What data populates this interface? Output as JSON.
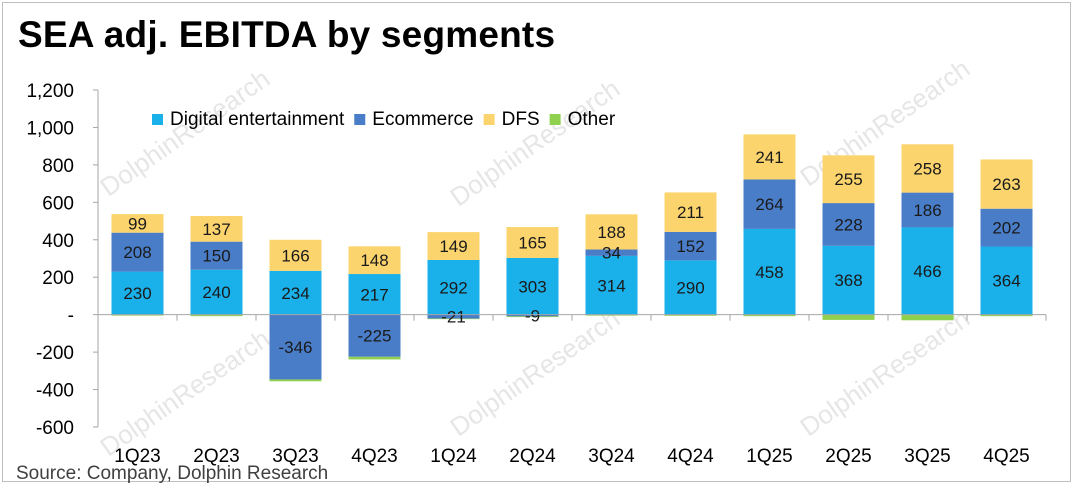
{
  "title": "SEA adj. EBITDA by segments",
  "source": "Source: Company, Dolphin Research",
  "watermark": "DolphinResearch",
  "chart_data": {
    "type": "bar",
    "stacked": true,
    "title": "SEA adj. EBITDA by segments",
    "xlabel": "",
    "ylabel": "",
    "categories": [
      "1Q23",
      "2Q23",
      "3Q23",
      "4Q23",
      "1Q24",
      "2Q24",
      "3Q24",
      "4Q24",
      "1Q25",
      "2Q25",
      "3Q25",
      "4Q25"
    ],
    "ylim": [
      -600,
      1200
    ],
    "yticks": [
      -600,
      -400,
      -200,
      0,
      200,
      400,
      600,
      800,
      1000,
      1200
    ],
    "ytick_labels": [
      "-600",
      "-400",
      "-200",
      "-",
      "200",
      "400",
      "600",
      "800",
      "1,000",
      "1,200"
    ],
    "legend_position": "top-left",
    "grid": false,
    "series": [
      {
        "name": "Digital entertainment",
        "color": "#1ab0ea",
        "values": [
          230,
          240,
          234,
          217,
          292,
          303,
          314,
          290,
          458,
          368,
          466,
          364
        ]
      },
      {
        "name": "Ecommerce",
        "color": "#4a7dc8",
        "values": [
          208,
          150,
          -346,
          -225,
          -21,
          -9,
          34,
          152,
          264,
          228,
          186,
          202
        ]
      },
      {
        "name": "DFS",
        "color": "#fbd46d",
        "values": [
          99,
          137,
          166,
          148,
          149,
          165,
          188,
          211,
          241,
          255,
          258,
          263
        ]
      },
      {
        "name": "Other",
        "color": "#8fd14f",
        "values": [
          -5,
          -8,
          -10,
          -14,
          -3,
          -4,
          -5,
          -6,
          -8,
          -28,
          -30,
          -8
        ]
      }
    ],
    "labeled_series": [
      "Digital entertainment",
      "Ecommerce",
      "DFS"
    ]
  }
}
